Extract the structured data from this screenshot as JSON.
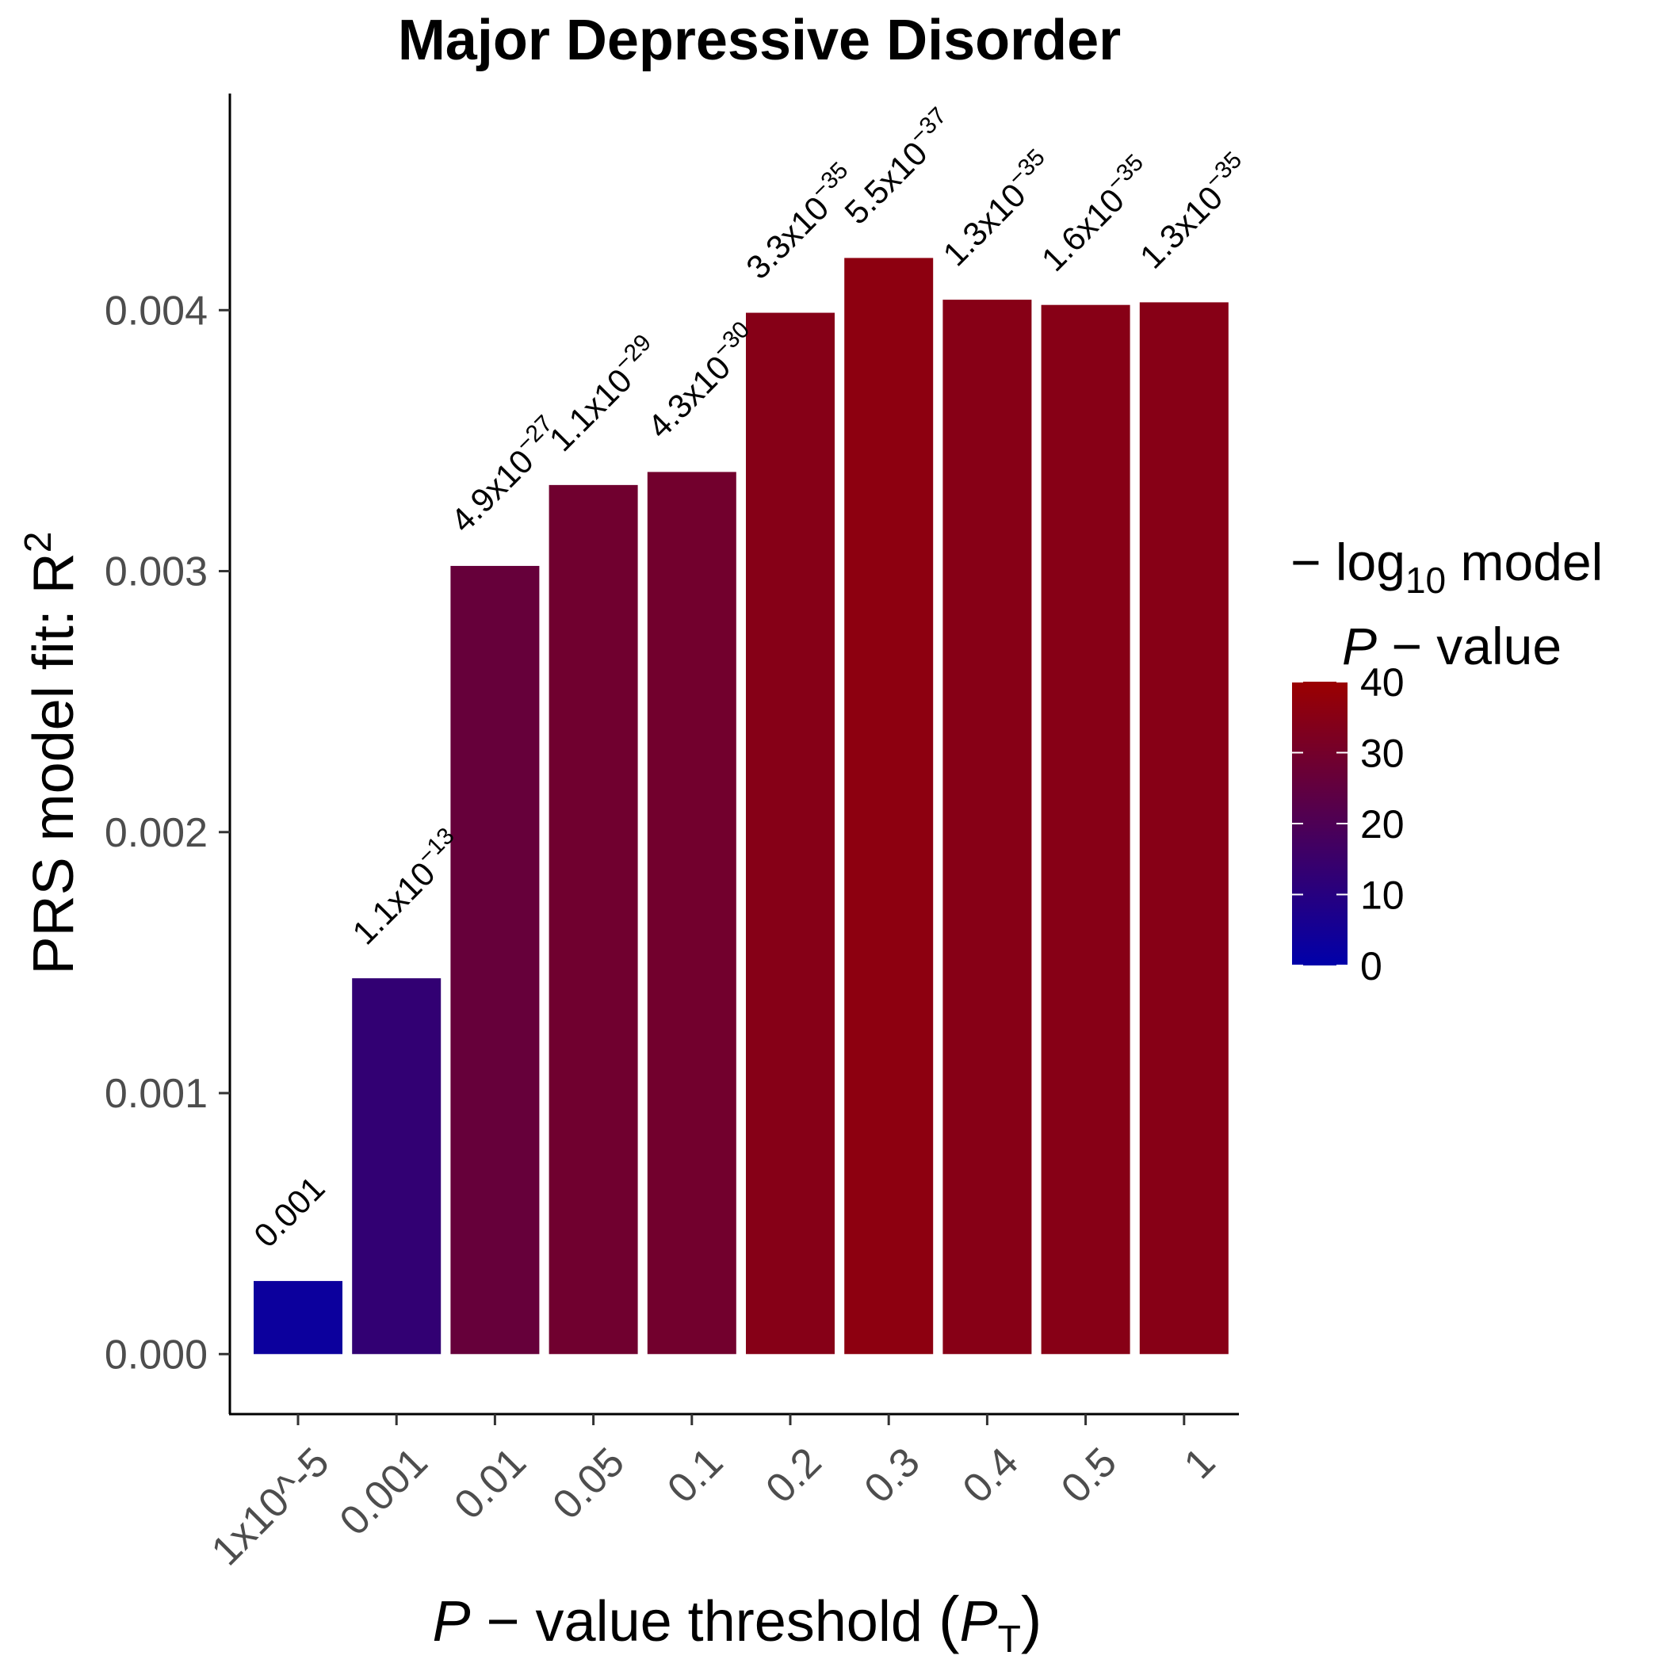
{
  "chart_data": {
    "type": "bar",
    "title": "Major Depressive Disorder",
    "xlabel": "P − value threshold (PT)",
    "ylabel": "PRS model fit:  R2",
    "ylim": [
      -0.00023,
      0.00483
    ],
    "yticks": [
      "0.000",
      "0.001",
      "0.002",
      "0.003",
      "0.004"
    ],
    "ytick_values": [
      0,
      0.001,
      0.002,
      0.003,
      0.004
    ],
    "categories": [
      "1x10^-5",
      "0.001",
      "0.01",
      "0.05",
      "0.1",
      "0.2",
      "0.3",
      "0.4",
      "0.5",
      "1"
    ],
    "values": [
      0.00028,
      0.00144,
      0.00302,
      0.00333,
      0.00338,
      0.00399,
      0.0042,
      0.00404,
      0.00402,
      0.00403
    ],
    "neglog10_p": [
      3,
      12.96,
      26.31,
      28.96,
      29.37,
      34.48,
      36.26,
      34.89,
      34.8,
      34.89
    ],
    "p_labels": [
      {
        "base": "0.001",
        "exp": ""
      },
      {
        "base": "1.1x10",
        "exp": "−13"
      },
      {
        "base": "4.9x10",
        "exp": "−27"
      },
      {
        "base": "1.1x10",
        "exp": "−29"
      },
      {
        "base": "4.3x10",
        "exp": "−30"
      },
      {
        "base": "3.3x10",
        "exp": "−35"
      },
      {
        "base": "5.5x10",
        "exp": "−37"
      },
      {
        "base": "1.3x10",
        "exp": "−35"
      },
      {
        "base": "1.6x10",
        "exp": "−35"
      },
      {
        "base": "1.3x10",
        "exp": "−35"
      }
    ],
    "legend": {
      "title_line1": "− log10 model",
      "title_line2": "P − value",
      "ticks": [
        "0",
        "10",
        "20",
        "30",
        "40"
      ],
      "tick_values": [
        0,
        10,
        20,
        30,
        40
      ],
      "range": [
        0,
        40
      ],
      "color_low": "#0000aa",
      "color_high": "#9b0000",
      "placement": "right"
    },
    "grid": false
  }
}
